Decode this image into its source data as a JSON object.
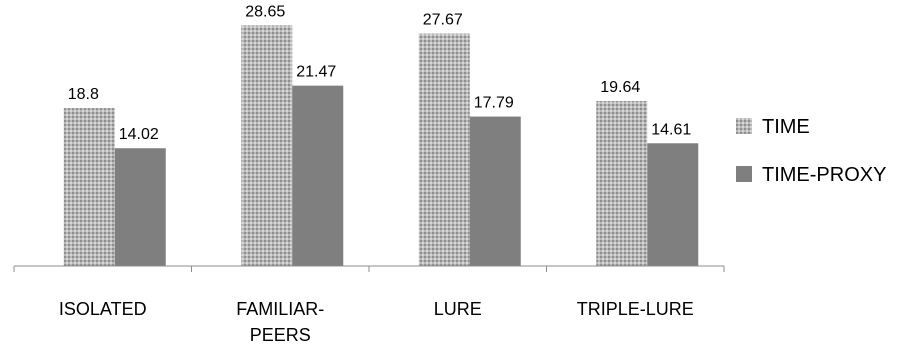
{
  "chart_data": {
    "type": "bar",
    "categories": [
      [
        "ISOLATED"
      ],
      [
        "FAMILIAR-",
        "PEERS"
      ],
      [
        "LURE"
      ],
      [
        "TRIPLE-LURE"
      ]
    ],
    "series": [
      {
        "name": "TIME",
        "values": [
          18.8,
          28.65,
          27.67,
          19.64
        ],
        "labels": [
          "18.8",
          "28.65",
          "27.67",
          "19.64"
        ],
        "color": "#a6a6a6",
        "pattern": "dotted"
      },
      {
        "name": "TIME-PROXY",
        "values": [
          14.02,
          21.47,
          17.79,
          14.61
        ],
        "labels": [
          "14.02",
          "21.47",
          "17.79",
          "14.61"
        ],
        "color": "#7f7f7f",
        "pattern": "solid"
      }
    ],
    "ylim": [
      0,
      30
    ],
    "legend": "right",
    "grid": false,
    "title": "",
    "xlabel": "",
    "ylabel": ""
  }
}
